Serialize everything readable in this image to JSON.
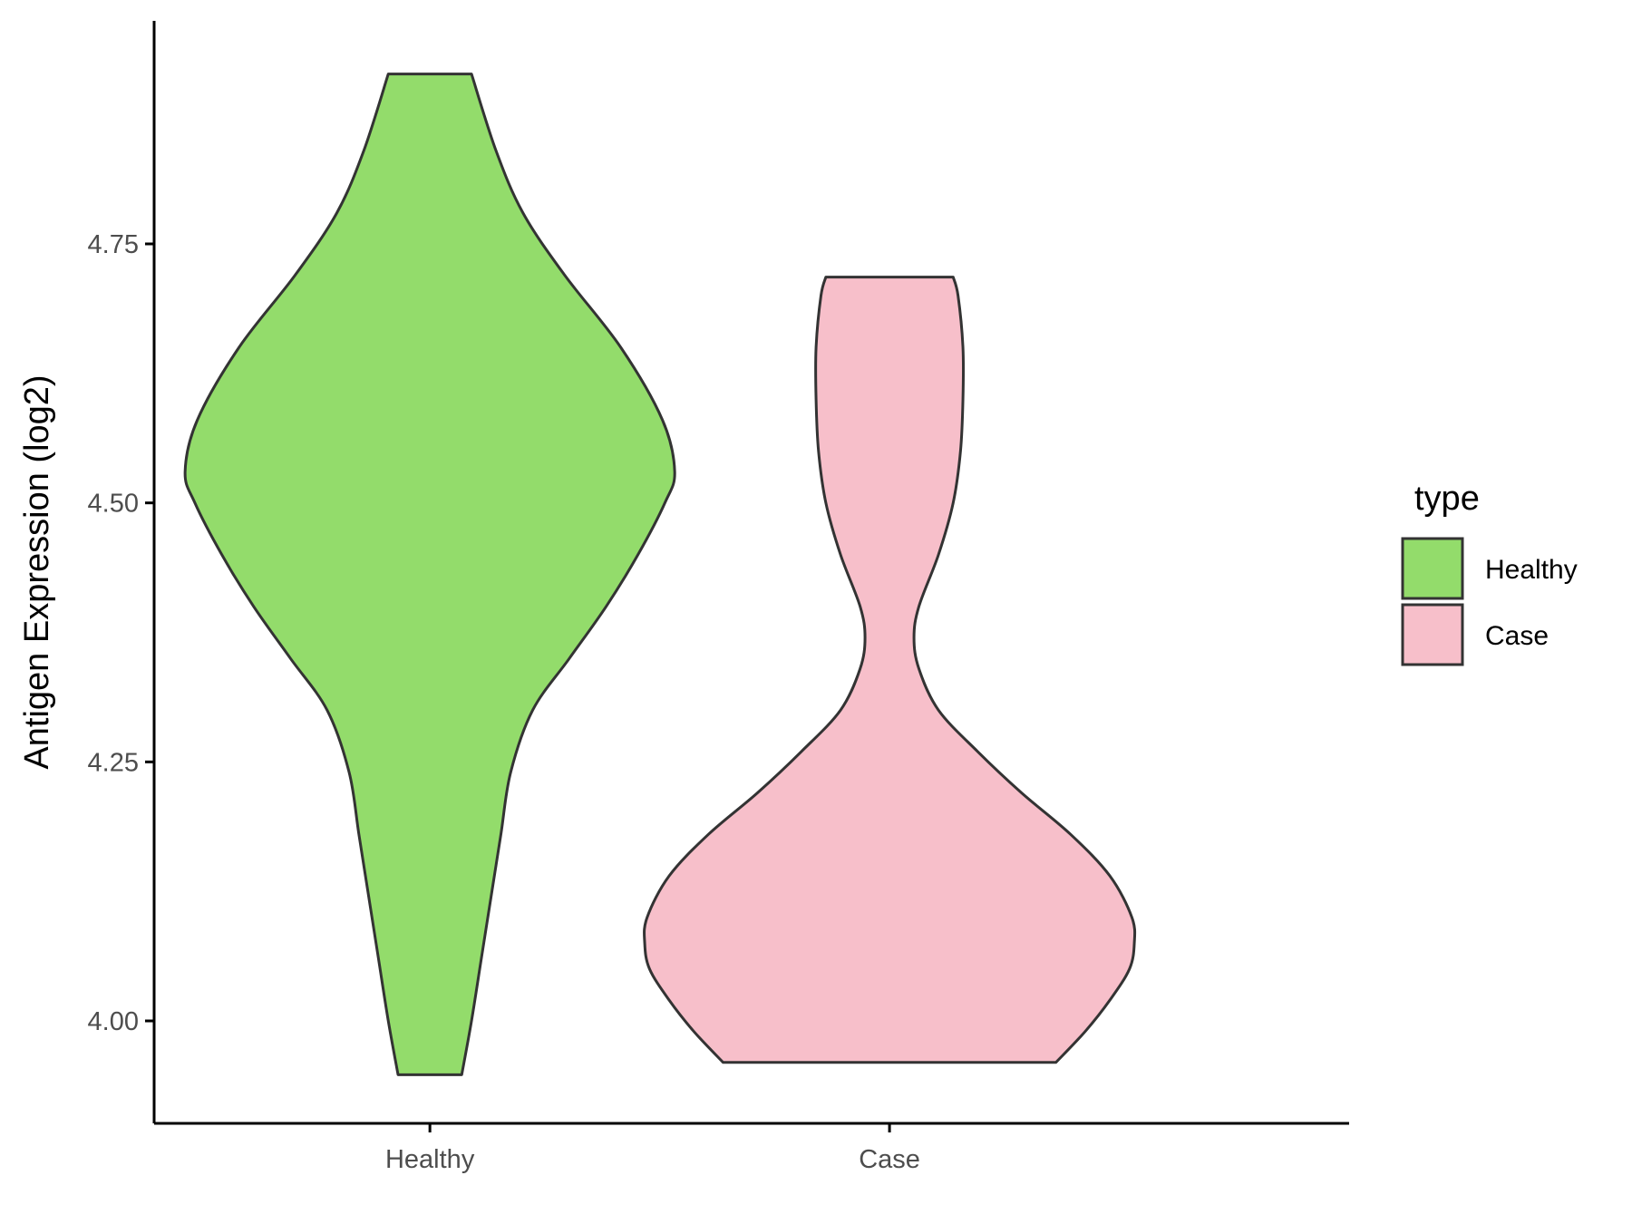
{
  "chart_data": {
    "type": "violin",
    "categories": [
      "Healthy",
      "Case"
    ],
    "ylabel": "Antigen Expression (log2)",
    "xlabel": "",
    "ylim": [
      3.9,
      5.0
    ],
    "yticks": [
      "4.00",
      "4.25",
      "4.50",
      "4.75"
    ],
    "grid": false,
    "legend": {
      "title": "type",
      "position": "right",
      "entries": [
        {
          "label": "Healthy",
          "color": "#93dc6b"
        },
        {
          "label": "Case",
          "color": "#f7bfca"
        }
      ]
    },
    "series": [
      {
        "category": "Healthy",
        "color": "#93dc6b",
        "range": [
          3.948,
          4.914
        ],
        "profile": [
          [
            3.948,
            0.13
          ],
          [
            4.0,
            0.17
          ],
          [
            4.06,
            0.21
          ],
          [
            4.12,
            0.25
          ],
          [
            4.18,
            0.29
          ],
          [
            4.24,
            0.33
          ],
          [
            4.3,
            0.42
          ],
          [
            4.35,
            0.57
          ],
          [
            4.4,
            0.72
          ],
          [
            4.45,
            0.85
          ],
          [
            4.5,
            0.96
          ],
          [
            4.53,
            1.0
          ],
          [
            4.58,
            0.95
          ],
          [
            4.65,
            0.78
          ],
          [
            4.72,
            0.55
          ],
          [
            4.78,
            0.38
          ],
          [
            4.84,
            0.27
          ],
          [
            4.914,
            0.17
          ]
        ]
      },
      {
        "category": "Case",
        "color": "#f7bfca",
        "range": [
          3.96,
          4.718
        ],
        "profile": [
          [
            3.96,
            0.68
          ],
          [
            3.99,
            0.8
          ],
          [
            4.02,
            0.9
          ],
          [
            4.05,
            0.98
          ],
          [
            4.075,
            1.0
          ],
          [
            4.1,
            0.99
          ],
          [
            4.14,
            0.9
          ],
          [
            4.18,
            0.74
          ],
          [
            4.22,
            0.54
          ],
          [
            4.26,
            0.36
          ],
          [
            4.3,
            0.2
          ],
          [
            4.34,
            0.12
          ],
          [
            4.37,
            0.1
          ],
          [
            4.4,
            0.12
          ],
          [
            4.45,
            0.2
          ],
          [
            4.5,
            0.26
          ],
          [
            4.55,
            0.29
          ],
          [
            4.6,
            0.3
          ],
          [
            4.65,
            0.3
          ],
          [
            4.7,
            0.28
          ],
          [
            4.718,
            0.26
          ]
        ]
      }
    ]
  }
}
